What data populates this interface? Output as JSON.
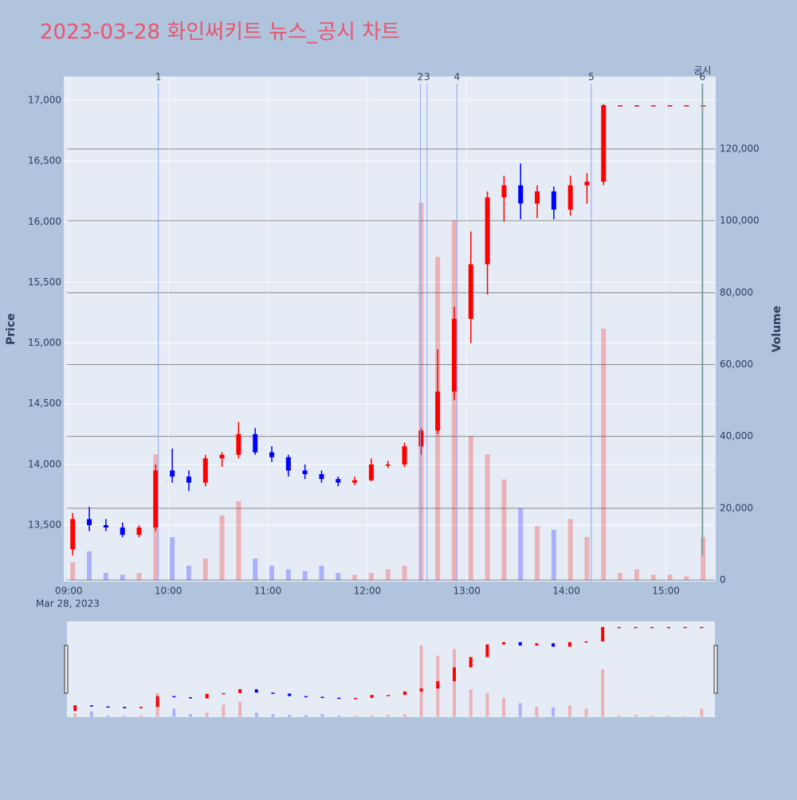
{
  "chart_data": {
    "type": "candlestick",
    "title": "2023-03-28 화인써키트 뉴스_공시 차트",
    "x": [
      "09:00",
      "09:10",
      "09:20",
      "09:30",
      "09:40",
      "09:50",
      "10:00",
      "10:10",
      "10:20",
      "10:30",
      "10:40",
      "10:50",
      "11:00",
      "11:10",
      "11:20",
      "11:30",
      "11:40",
      "11:50",
      "12:00",
      "12:10",
      "12:20",
      "12:30",
      "12:40",
      "12:50",
      "13:00",
      "13:10",
      "13:20",
      "13:30",
      "13:40",
      "13:50",
      "14:00",
      "14:10",
      "14:20",
      "14:30",
      "14:40",
      "14:50",
      "15:00",
      "15:10",
      "15:20"
    ],
    "x_date_label": "Mar 28, 2023",
    "open": [
      13300,
      13550,
      13500,
      13480,
      13420,
      13480,
      13950,
      13900,
      13850,
      14050,
      14080,
      14250,
      14100,
      14060,
      13950,
      13920,
      13880,
      13850,
      13870,
      14000,
      14000,
      14150,
      14280,
      14600,
      15200,
      15650,
      16200,
      16300,
      16150,
      16250,
      16100,
      16300,
      16330,
      16960,
      16960,
      16960,
      16960,
      16960,
      16960
    ],
    "high": [
      13600,
      13650,
      13550,
      13520,
      13500,
      14000,
      14130,
      13950,
      14080,
      14100,
      14350,
      14300,
      14150,
      14080,
      14000,
      13950,
      13900,
      13900,
      14050,
      14030,
      14180,
      14300,
      14950,
      15300,
      15920,
      16250,
      16380,
      16480,
      16300,
      16290,
      16380,
      16400,
      16970,
      16960,
      16960,
      16960,
      16960,
      16960,
      16960
    ],
    "low": [
      13250,
      13450,
      13450,
      13400,
      13400,
      13450,
      13850,
      13780,
      13820,
      13980,
      14050,
      14080,
      14020,
      13900,
      13880,
      13850,
      13820,
      13830,
      13860,
      13970,
      13980,
      14080,
      14250,
      14530,
      15000,
      15400,
      16000,
      16020,
      16030,
      16020,
      16050,
      16150,
      16300,
      16960,
      16960,
      16960,
      16960,
      16960,
      16960
    ],
    "close": [
      13550,
      13500,
      13480,
      13420,
      13480,
      13950,
      13900,
      13850,
      14050,
      14080,
      14250,
      14100,
      14060,
      13950,
      13920,
      13880,
      13850,
      13870,
      14000,
      14000,
      14150,
      14280,
      14600,
      15200,
      15650,
      16200,
      16300,
      16150,
      16250,
      16100,
      16300,
      16330,
      16960,
      16960,
      16960,
      16960,
      16960,
      16960,
      16960
    ],
    "volume": [
      5000,
      8000,
      2000,
      1500,
      2000,
      35000,
      12000,
      4000,
      6000,
      18000,
      22000,
      6000,
      4000,
      3000,
      2500,
      4000,
      2000,
      1500,
      2000,
      3000,
      4000,
      105000,
      90000,
      100000,
      40000,
      35000,
      28000,
      20000,
      15000,
      14000,
      17000,
      12000,
      70000,
      2000,
      3000,
      1500,
      1500,
      1000,
      12000
    ],
    "up_color": "#ff0000",
    "down_color": "#0000ff",
    "xlim": [
      "08:57",
      "15:30"
    ],
    "xticks": [
      "09:00",
      "10:00",
      "11:00",
      "12:00",
      "13:00",
      "14:00",
      "15:00"
    ],
    "ylabel": "Price",
    "ylim": [
      13034,
      17197
    ],
    "yticks": [
      {
        "value": 13500,
        "label": "13,500"
      },
      {
        "value": 14000,
        "label": "14,000"
      },
      {
        "value": 14500,
        "label": "14,500"
      },
      {
        "value": 15000,
        "label": "15,000"
      },
      {
        "value": 15500,
        "label": "15,500"
      },
      {
        "value": 16000,
        "label": "16,000"
      },
      {
        "value": 16500,
        "label": "16,500"
      },
      {
        "value": 17000,
        "label": "17,000"
      }
    ],
    "y2label": "Volume",
    "y2lim": [
      -443,
      140180
    ],
    "y2ticks": [
      0,
      {
        "value": 20000,
        "label": "20,000"
      },
      {
        "value": 40000,
        "label": "40,000"
      },
      {
        "value": 60000,
        "label": "60,000"
      },
      {
        "value": 80000,
        "label": "80,000"
      },
      {
        "value": 100000,
        "label": "100,000"
      },
      {
        "value": 120000,
        "label": "120,000"
      }
    ],
    "events": {
      "label": "공시",
      "x": [
        "09:54",
        "12:32",
        "12:36",
        "12:54",
        "14:15",
        "15:22"
      ],
      "names": [
        "1",
        "2",
        "3",
        "4",
        "5",
        "6"
      ]
    }
  }
}
